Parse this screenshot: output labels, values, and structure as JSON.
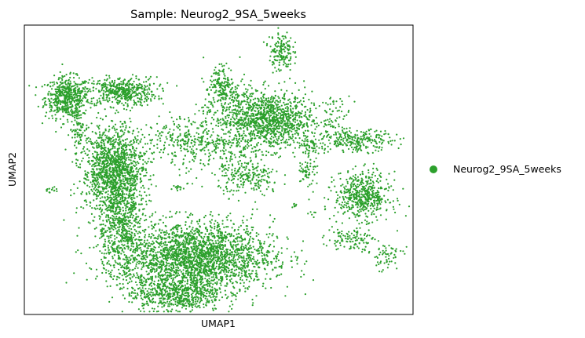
{
  "chart_data": {
    "type": "scatter",
    "title": "Sample: Neurog2_9SA_5weeks",
    "xlabel": "UMAP1",
    "ylabel": "UMAP2",
    "grid": false,
    "ticks": "none",
    "legend_placement": "right",
    "series": [
      {
        "name": "Neurog2_9SA_5weeks",
        "color": "#2ca02c",
        "marker": "filled-circle",
        "clusters": [
          {
            "x": 0.11,
            "y": 0.75,
            "sx": 0.028,
            "sy": 0.035,
            "n": 520
          },
          {
            "x": 0.25,
            "y": 0.77,
            "sx": 0.045,
            "sy": 0.025,
            "n": 480
          },
          {
            "x": 0.14,
            "y": 0.64,
            "sx": 0.012,
            "sy": 0.04,
            "n": 90
          },
          {
            "x": 0.64,
            "y": 0.67,
            "sx": 0.05,
            "sy": 0.05,
            "n": 950
          },
          {
            "x": 0.54,
            "y": 0.71,
            "sx": 0.04,
            "sy": 0.05,
            "n": 320
          },
          {
            "x": 0.51,
            "y": 0.8,
            "sx": 0.015,
            "sy": 0.03,
            "n": 130
          },
          {
            "x": 0.66,
            "y": 0.91,
            "sx": 0.015,
            "sy": 0.035,
            "n": 160
          },
          {
            "x": 0.5,
            "y": 0.57,
            "sx": 0.06,
            "sy": 0.05,
            "n": 260
          },
          {
            "x": 0.4,
            "y": 0.61,
            "sx": 0.05,
            "sy": 0.035,
            "n": 180
          },
          {
            "x": 0.23,
            "y": 0.5,
            "sx": 0.04,
            "sy": 0.075,
            "n": 1300
          },
          {
            "x": 0.25,
            "y": 0.31,
            "sx": 0.03,
            "sy": 0.09,
            "n": 600
          },
          {
            "x": 0.44,
            "y": 0.2,
            "sx": 0.1,
            "sy": 0.06,
            "n": 2400
          },
          {
            "x": 0.39,
            "y": 0.07,
            "sx": 0.06,
            "sy": 0.03,
            "n": 600
          },
          {
            "x": 0.58,
            "y": 0.47,
            "sx": 0.04,
            "sy": 0.03,
            "n": 200
          },
          {
            "x": 0.87,
            "y": 0.41,
            "sx": 0.035,
            "sy": 0.04,
            "n": 520
          },
          {
            "x": 0.86,
            "y": 0.6,
            "sx": 0.045,
            "sy": 0.018,
            "n": 240
          },
          {
            "x": 0.8,
            "y": 0.68,
            "sx": 0.02,
            "sy": 0.04,
            "n": 70
          },
          {
            "x": 0.74,
            "y": 0.59,
            "sx": 0.015,
            "sy": 0.02,
            "n": 60
          },
          {
            "x": 0.73,
            "y": 0.5,
            "sx": 0.012,
            "sy": 0.035,
            "n": 60
          },
          {
            "x": 0.84,
            "y": 0.26,
            "sx": 0.03,
            "sy": 0.02,
            "n": 110
          },
          {
            "x": 0.93,
            "y": 0.2,
            "sx": 0.022,
            "sy": 0.025,
            "n": 60
          },
          {
            "x": 0.07,
            "y": 0.43,
            "sx": 0.01,
            "sy": 0.005,
            "n": 15
          },
          {
            "x": 0.39,
            "y": 0.44,
            "sx": 0.01,
            "sy": 0.005,
            "n": 12
          },
          {
            "x": 0.69,
            "y": 0.37,
            "sx": 0.008,
            "sy": 0.006,
            "n": 8
          },
          {
            "x": 0.74,
            "y": 0.35,
            "sx": 0.006,
            "sy": 0.006,
            "n": 6
          }
        ]
      }
    ]
  }
}
